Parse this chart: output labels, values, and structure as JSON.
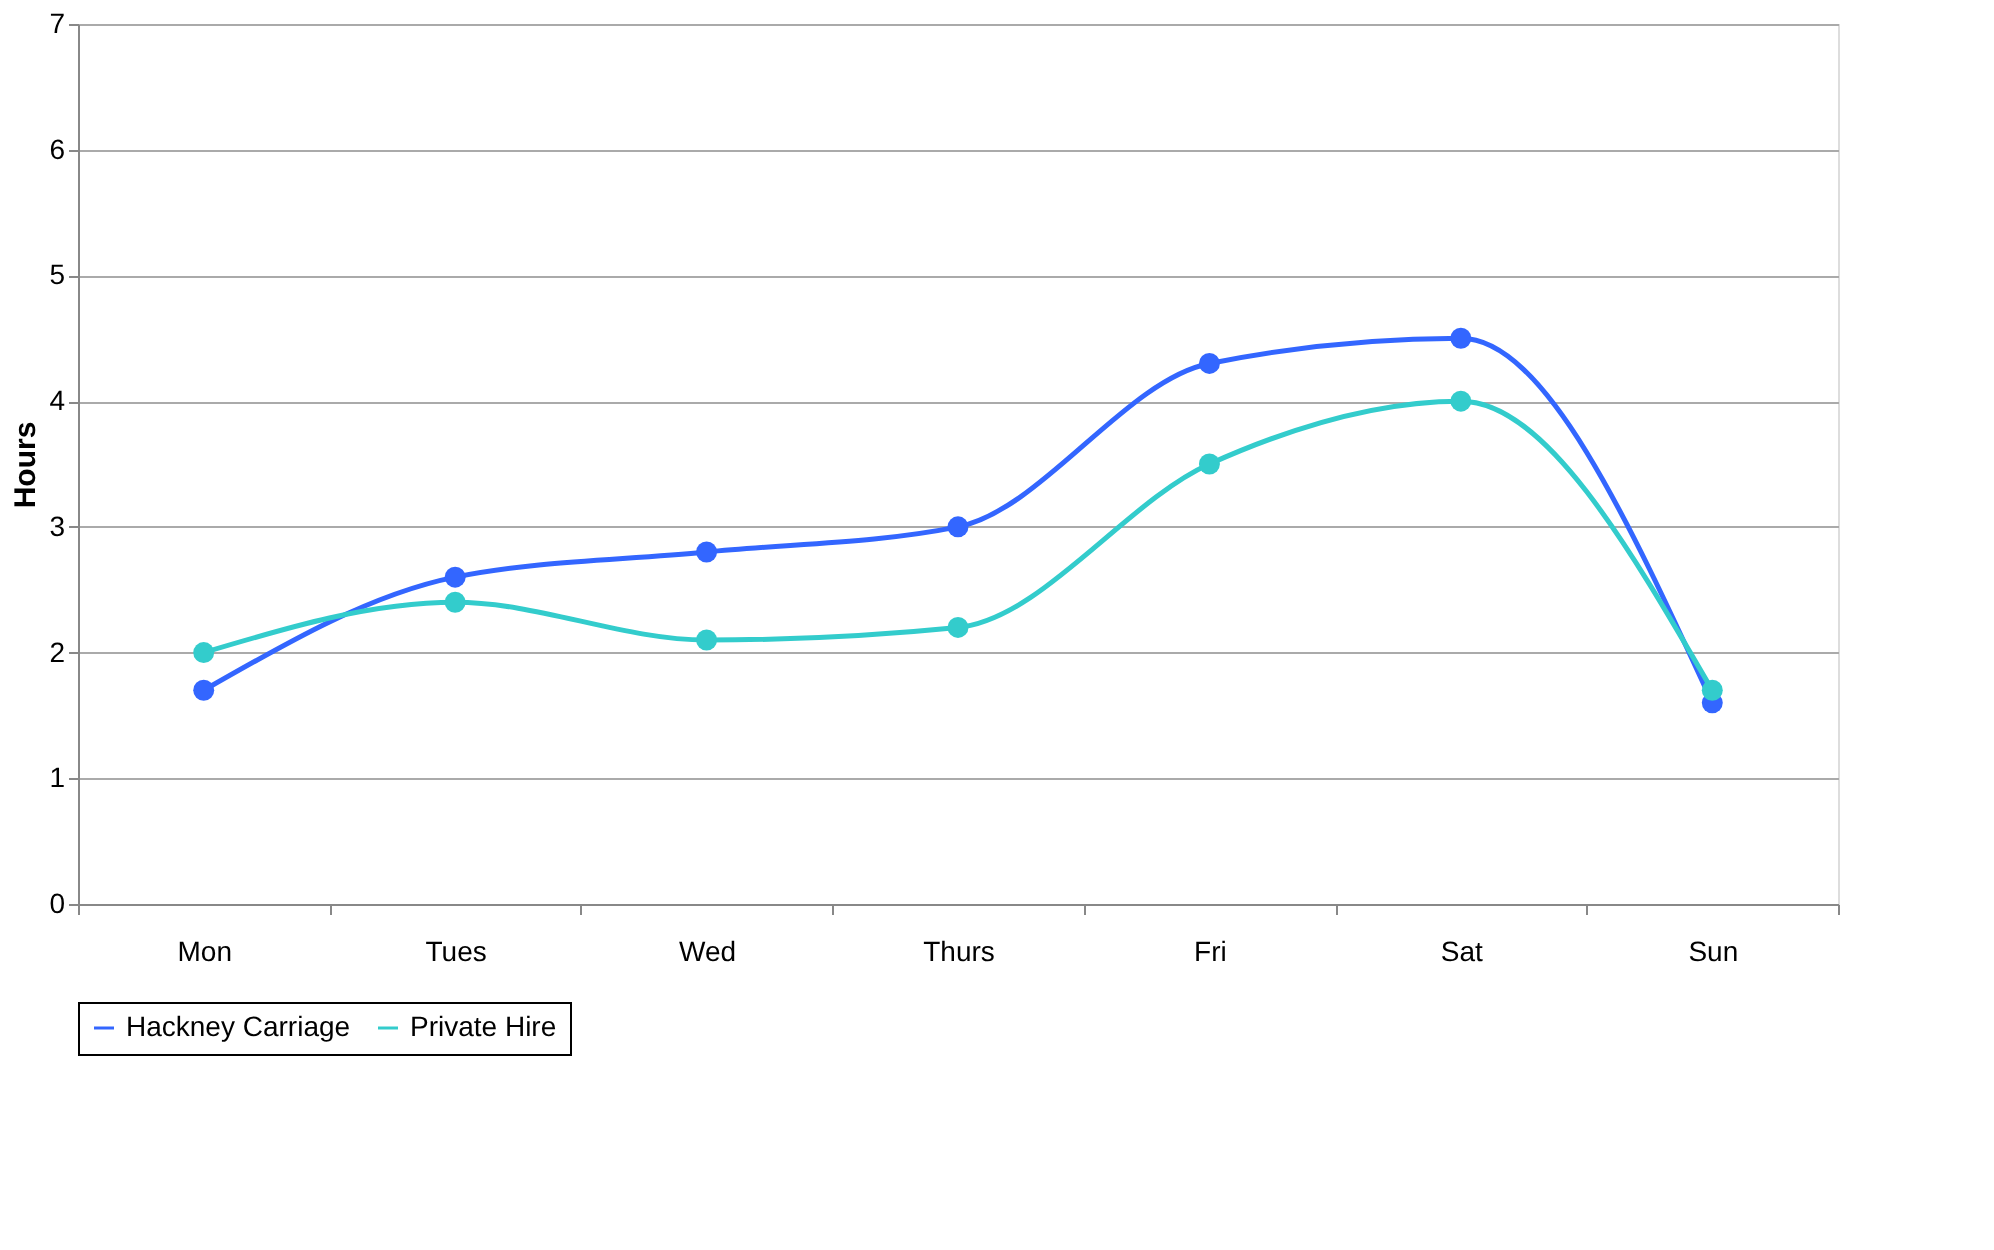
{
  "chart_data": {
    "type": "line",
    "ylabel": "Hours",
    "categories": [
      "Mon",
      "Tues",
      "Wed",
      "Thurs",
      "Fri",
      "Sat",
      "Sun"
    ],
    "series": [
      {
        "name": "Hackney Carriage",
        "color": "#3366ff",
        "values": [
          1.7,
          2.6,
          2.8,
          3.0,
          4.3,
          4.5,
          1.6
        ]
      },
      {
        "name": "Private Hire",
        "color": "#33cccc",
        "values": [
          2.0,
          2.4,
          2.1,
          2.2,
          3.5,
          4.0,
          1.7
        ]
      }
    ],
    "ylim": [
      0,
      7
    ],
    "yticks": [
      0,
      1,
      2,
      3,
      4,
      5,
      6,
      7
    ],
    "grid": "y",
    "legend": "bottom",
    "marker": "circle",
    "line_style": "solid"
  }
}
